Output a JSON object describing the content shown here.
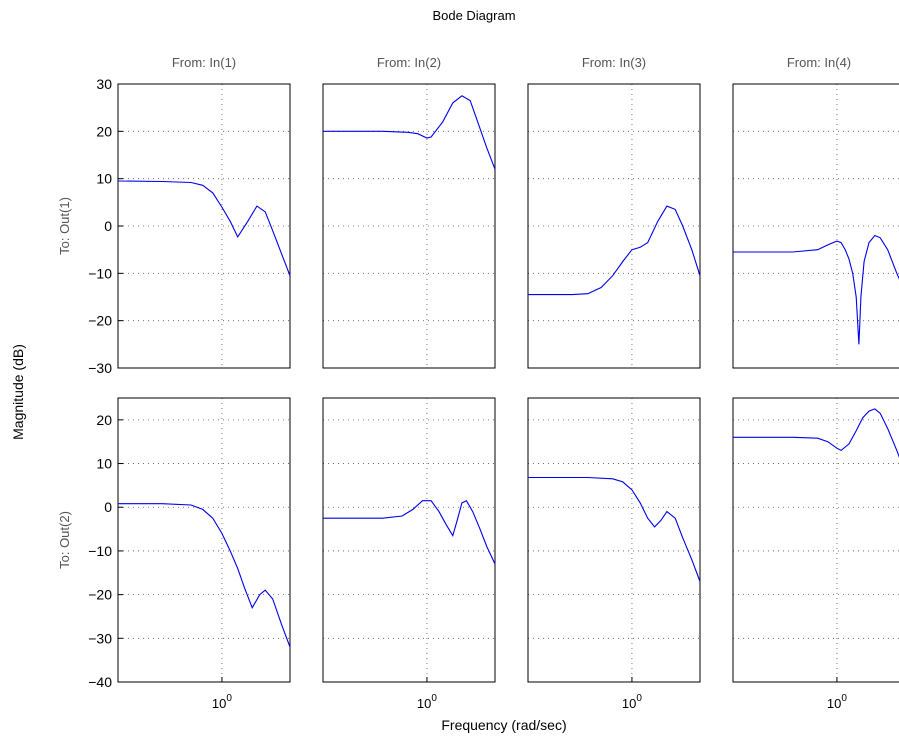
{
  "chart_data": {
    "type": "line",
    "title": "Bode Diagram",
    "xlabel": "Frequency  (rad/sec)",
    "ylabel": "Magnitude (dB)",
    "x_scale": "log",
    "xlim": [
      0.3,
      2.2
    ],
    "x_tick": {
      "base": "10",
      "exponent": "0",
      "value": 1
    },
    "grid": true,
    "inputs": [
      "From: In(1)",
      "From: In(2)",
      "From: In(3)",
      "From: In(4)"
    ],
    "outputs": [
      "To: Out(1)",
      "To: Out(2)"
    ],
    "rows": [
      {
        "output": "To: Out(1)",
        "ylim": [
          -30,
          30
        ],
        "yticks": [
          -30,
          -20,
          -10,
          0,
          10,
          20,
          30
        ]
      },
      {
        "output": "To: Out(2)",
        "ylim": [
          -40,
          25
        ],
        "yticks": [
          -40,
          -30,
          -20,
          -10,
          0,
          10,
          20
        ]
      }
    ],
    "series": [
      {
        "row": 0,
        "col": 0,
        "x": [
          0.3,
          0.5,
          0.7,
          0.8,
          0.9,
          1.0,
          1.1,
          1.2,
          1.35,
          1.5,
          1.65,
          1.8,
          2.0,
          2.2
        ],
        "y": [
          9.5,
          9.4,
          9.2,
          8.6,
          7.0,
          4.0,
          1.0,
          -2.3,
          1.0,
          4.2,
          3.0,
          -1.0,
          -6.0,
          -10.5
        ]
      },
      {
        "row": 0,
        "col": 1,
        "x": [
          0.3,
          0.6,
          0.8,
          0.9,
          1.0,
          1.05,
          1.2,
          1.35,
          1.5,
          1.65,
          1.8,
          2.0,
          2.2
        ],
        "y": [
          20.0,
          20.0,
          19.8,
          19.5,
          18.6,
          18.8,
          22.0,
          26.0,
          27.5,
          26.5,
          22.0,
          16.5,
          12.0
        ]
      },
      {
        "row": 0,
        "col": 2,
        "x": [
          0.3,
          0.5,
          0.6,
          0.7,
          0.8,
          0.9,
          1.0,
          1.1,
          1.2,
          1.35,
          1.5,
          1.65,
          1.8,
          2.0,
          2.2
        ],
        "y": [
          -14.5,
          -14.5,
          -14.3,
          -13.0,
          -10.5,
          -7.5,
          -5.0,
          -4.5,
          -3.5,
          1.0,
          4.2,
          3.5,
          0.0,
          -5.0,
          -10.5
        ]
      },
      {
        "row": 0,
        "col": 3,
        "x": [
          0.3,
          0.6,
          0.8,
          0.9,
          1.0,
          1.05,
          1.1,
          1.15,
          1.2,
          1.25,
          1.29,
          1.32,
          1.37,
          1.45,
          1.55,
          1.65,
          1.8,
          2.0,
          2.2
        ],
        "y": [
          -5.5,
          -5.5,
          -5.0,
          -4.0,
          -3.2,
          -3.5,
          -5.0,
          -7.0,
          -10.0,
          -15.0,
          -25.0,
          -15.0,
          -7.5,
          -3.5,
          -2.0,
          -2.5,
          -5.0,
          -10.0,
          -14.0
        ]
      },
      {
        "row": 1,
        "col": 0,
        "x": [
          0.3,
          0.5,
          0.7,
          0.8,
          0.9,
          1.0,
          1.1,
          1.2,
          1.3,
          1.42,
          1.55,
          1.65,
          1.8,
          2.0,
          2.2
        ],
        "y": [
          0.8,
          0.8,
          0.5,
          -0.5,
          -2.5,
          -6.0,
          -10.0,
          -14.0,
          -18.5,
          -23.0,
          -20.0,
          -19.0,
          -21.0,
          -27.0,
          -32.0
        ]
      },
      {
        "row": 1,
        "col": 1,
        "x": [
          0.3,
          0.6,
          0.75,
          0.85,
          0.95,
          1.05,
          1.15,
          1.25,
          1.35,
          1.42,
          1.5,
          1.58,
          1.7,
          1.85,
          2.0,
          2.2
        ],
        "y": [
          -2.5,
          -2.5,
          -2.0,
          -0.5,
          1.5,
          1.5,
          -1.0,
          -4.0,
          -6.5,
          -3.0,
          1.0,
          1.5,
          -1.0,
          -5.0,
          -9.0,
          -13.0
        ]
      },
      {
        "row": 1,
        "col": 2,
        "x": [
          0.3,
          0.6,
          0.8,
          0.9,
          1.0,
          1.1,
          1.2,
          1.3,
          1.4,
          1.5,
          1.65,
          1.8,
          2.0,
          2.2
        ],
        "y": [
          6.8,
          6.8,
          6.5,
          5.8,
          4.0,
          1.0,
          -2.5,
          -4.5,
          -3.0,
          -1.0,
          -2.5,
          -7.0,
          -12.0,
          -17.0
        ]
      },
      {
        "row": 1,
        "col": 3,
        "x": [
          0.3,
          0.6,
          0.8,
          0.9,
          1.0,
          1.05,
          1.15,
          1.25,
          1.35,
          1.45,
          1.55,
          1.65,
          1.8,
          2.0,
          2.2
        ],
        "y": [
          16.0,
          16.0,
          15.8,
          15.0,
          13.5,
          13.0,
          14.5,
          17.5,
          20.5,
          22.0,
          22.5,
          21.5,
          18.0,
          13.0,
          8.0
        ]
      }
    ]
  }
}
